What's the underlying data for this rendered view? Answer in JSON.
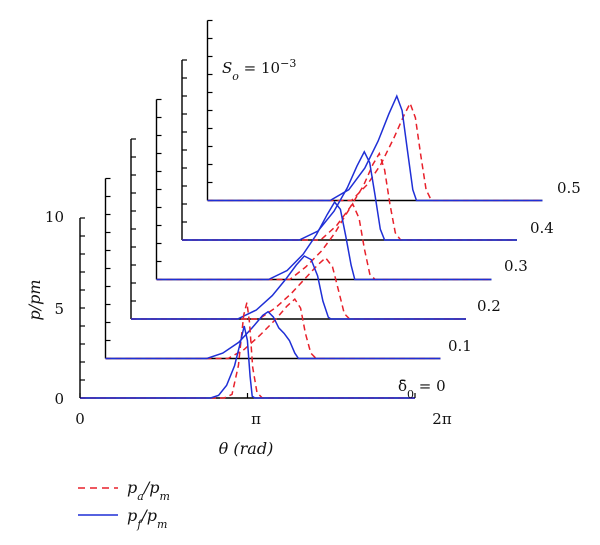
{
  "chart_data": {
    "type": "line",
    "title": "",
    "xlabel": "θ (rad)",
    "ylabel": "p/pm",
    "x_ticks": [
      "0",
      "π",
      "2π"
    ],
    "y_ticks": [
      "0",
      "5",
      "10"
    ],
    "xlim": [
      0,
      6.2832
    ],
    "ylim": [
      0,
      12
    ],
    "annotation": "So = 10^-3",
    "legend": [
      {
        "label": "pa/pm",
        "style": "dashed",
        "color": "#e8212b"
      },
      {
        "label": "pf/pm",
        "style": "solid",
        "color": "#1f2fd6"
      }
    ],
    "colors": {
      "pa": "#e8212b",
      "pf": "#1f2fd6"
    },
    "layers": [
      {
        "label": "δ0 = 0",
        "pa": [
          [
            0,
            0
          ],
          [
            2.7,
            0
          ],
          [
            2.85,
            0.2
          ],
          [
            2.97,
            1.8
          ],
          [
            3.07,
            4.6
          ],
          [
            3.13,
            5.3
          ],
          [
            3.18,
            4.2
          ],
          [
            3.24,
            1.7
          ],
          [
            3.32,
            0.3
          ],
          [
            3.42,
            0
          ],
          [
            6.2832,
            0
          ]
        ],
        "pf": [
          [
            0,
            0
          ],
          [
            2.45,
            0
          ],
          [
            2.6,
            0.15
          ],
          [
            2.75,
            0.7
          ],
          [
            2.9,
            1.8
          ],
          [
            3.0,
            3.0
          ],
          [
            3.08,
            4.0
          ],
          [
            3.14,
            3.2
          ],
          [
            3.19,
            1.2
          ],
          [
            3.23,
            0.1
          ],
          [
            3.28,
            0
          ],
          [
            6.2832,
            0
          ]
        ]
      },
      {
        "label": "0.1",
        "pa": [
          [
            0,
            0
          ],
          [
            2.3,
            0
          ],
          [
            2.6,
            0.5
          ],
          [
            2.9,
            1.3
          ],
          [
            3.2,
            2.2
          ],
          [
            3.4,
            2.9
          ],
          [
            3.55,
            3.3
          ],
          [
            3.66,
            2.8
          ],
          [
            3.75,
            1.4
          ],
          [
            3.85,
            0.3
          ],
          [
            3.95,
            0
          ],
          [
            6.2832,
            0
          ]
        ],
        "pf": [
          [
            0,
            0
          ],
          [
            1.9,
            0
          ],
          [
            2.2,
            0.3
          ],
          [
            2.5,
            0.9
          ],
          [
            2.75,
            1.7
          ],
          [
            2.95,
            2.4
          ],
          [
            3.05,
            2.6
          ],
          [
            3.15,
            2.3
          ],
          [
            3.25,
            1.7
          ],
          [
            3.35,
            1.4
          ],
          [
            3.45,
            1.0
          ],
          [
            3.55,
            0.3
          ],
          [
            3.62,
            0
          ],
          [
            6.2832,
            0
          ]
        ]
      },
      {
        "label": "0.2",
        "pa": [
          [
            0,
            0
          ],
          [
            2.4,
            0
          ],
          [
            2.7,
            0.6
          ],
          [
            3.0,
            1.4
          ],
          [
            3.25,
            2.2
          ],
          [
            3.5,
            3.0
          ],
          [
            3.65,
            3.4
          ],
          [
            3.78,
            2.9
          ],
          [
            3.9,
            1.5
          ],
          [
            4.0,
            0.3
          ],
          [
            4.1,
            0
          ],
          [
            6.2832,
            0
          ]
        ],
        "pf": [
          [
            0,
            0
          ],
          [
            2.0,
            0
          ],
          [
            2.35,
            0.5
          ],
          [
            2.65,
            1.3
          ],
          [
            2.9,
            2.2
          ],
          [
            3.1,
            3.0
          ],
          [
            3.25,
            3.5
          ],
          [
            3.38,
            3.3
          ],
          [
            3.5,
            2.4
          ],
          [
            3.6,
            1.0
          ],
          [
            3.7,
            0.1
          ],
          [
            3.75,
            0
          ],
          [
            6.2832,
            0
          ]
        ]
      },
      {
        "label": "0.3",
        "pa": [
          [
            0,
            0
          ],
          [
            2.5,
            0
          ],
          [
            2.8,
            0.7
          ],
          [
            3.1,
            1.6
          ],
          [
            3.35,
            2.6
          ],
          [
            3.55,
            3.6
          ],
          [
            3.68,
            4.2
          ],
          [
            3.8,
            3.4
          ],
          [
            3.9,
            1.7
          ],
          [
            4.0,
            0.3
          ],
          [
            4.1,
            0
          ],
          [
            6.2832,
            0
          ]
        ],
        "pf": [
          [
            0,
            0
          ],
          [
            2.1,
            0
          ],
          [
            2.45,
            0.5
          ],
          [
            2.75,
            1.4
          ],
          [
            3.0,
            2.5
          ],
          [
            3.2,
            3.6
          ],
          [
            3.34,
            4.3
          ],
          [
            3.45,
            3.9
          ],
          [
            3.55,
            2.4
          ],
          [
            3.65,
            0.8
          ],
          [
            3.72,
            0
          ],
          [
            6.2832,
            0
          ]
        ]
      },
      {
        "label": "0.4",
        "pa": [
          [
            0,
            0
          ],
          [
            2.6,
            0
          ],
          [
            2.9,
            0.8
          ],
          [
            3.15,
            1.8
          ],
          [
            3.4,
            3.0
          ],
          [
            3.58,
            4.2
          ],
          [
            3.7,
            4.8
          ],
          [
            3.8,
            3.9
          ],
          [
            3.9,
            2.0
          ],
          [
            4.0,
            0.4
          ],
          [
            4.1,
            0
          ],
          [
            6.2832,
            0
          ]
        ],
        "pf": [
          [
            0,
            0
          ],
          [
            2.2,
            0
          ],
          [
            2.55,
            0.5
          ],
          [
            2.85,
            1.6
          ],
          [
            3.1,
            2.9
          ],
          [
            3.28,
            4.1
          ],
          [
            3.42,
            4.9
          ],
          [
            3.52,
            4.3
          ],
          [
            3.62,
            2.5
          ],
          [
            3.72,
            0.6
          ],
          [
            3.8,
            0
          ],
          [
            6.2832,
            0
          ]
        ]
      },
      {
        "label": "0.5",
        "pa": [
          [
            0,
            0
          ],
          [
            2.7,
            0
          ],
          [
            3.0,
            0.9
          ],
          [
            3.25,
            2.0
          ],
          [
            3.5,
            3.5
          ],
          [
            3.68,
            4.7
          ],
          [
            3.8,
            5.4
          ],
          [
            3.9,
            4.6
          ],
          [
            4.0,
            2.5
          ],
          [
            4.1,
            0.6
          ],
          [
            4.2,
            0
          ],
          [
            6.2832,
            0
          ]
        ],
        "pf": [
          [
            0,
            0
          ],
          [
            2.3,
            0
          ],
          [
            2.65,
            0.6
          ],
          [
            2.95,
            1.8
          ],
          [
            3.2,
            3.3
          ],
          [
            3.4,
            4.8
          ],
          [
            3.55,
            5.8
          ],
          [
            3.65,
            5.0
          ],
          [
            3.75,
            2.8
          ],
          [
            3.85,
            0.6
          ],
          [
            3.92,
            0
          ],
          [
            6.2832,
            0
          ]
        ]
      }
    ]
  }
}
